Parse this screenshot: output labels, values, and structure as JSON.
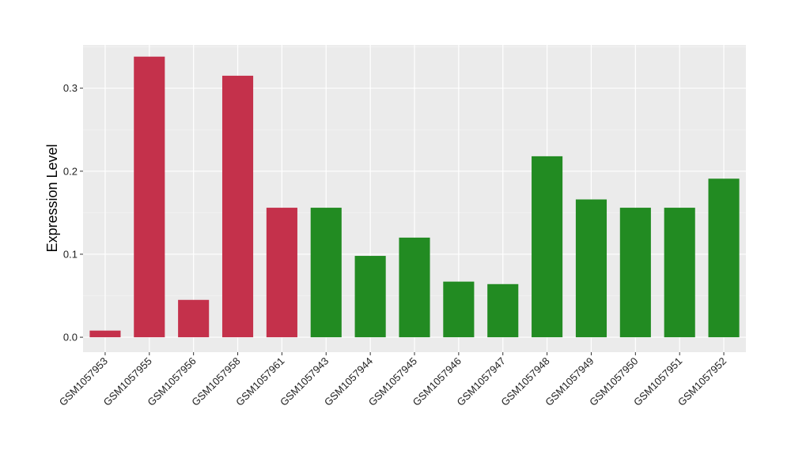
{
  "chart_data": {
    "type": "bar",
    "title": "",
    "xlabel": "",
    "ylabel": "Expression Level",
    "ylim": [
      -0.018,
      0.352
    ],
    "yticks": [
      0.0,
      0.1,
      0.2,
      0.3
    ],
    "ytick_labels": [
      "0.0",
      "0.1",
      "0.2",
      "0.3"
    ],
    "grid": true,
    "legend": "none",
    "colors": {
      "group_a": "#C4314B",
      "group_b": "#228B22",
      "panel_bg": "#EBEBEB",
      "grid_major": "#FFFFFF",
      "tick_color": "#333333"
    },
    "categories": [
      "GSM1057953",
      "GSM1057955",
      "GSM1057956",
      "GSM1057958",
      "GSM1057961",
      "GSM1057943",
      "GSM1057944",
      "GSM1057945",
      "GSM1057946",
      "GSM1057947",
      "GSM1057948",
      "GSM1057949",
      "GSM1057950",
      "GSM1057951",
      "GSM1057952"
    ],
    "values": [
      0.008,
      0.338,
      0.045,
      0.315,
      0.156,
      0.156,
      0.098,
      0.12,
      0.067,
      0.064,
      0.218,
      0.166,
      0.156,
      0.156,
      0.191
    ],
    "groups": [
      "a",
      "a",
      "a",
      "a",
      "a",
      "b",
      "b",
      "b",
      "b",
      "b",
      "b",
      "b",
      "b",
      "b",
      "b"
    ]
  }
}
